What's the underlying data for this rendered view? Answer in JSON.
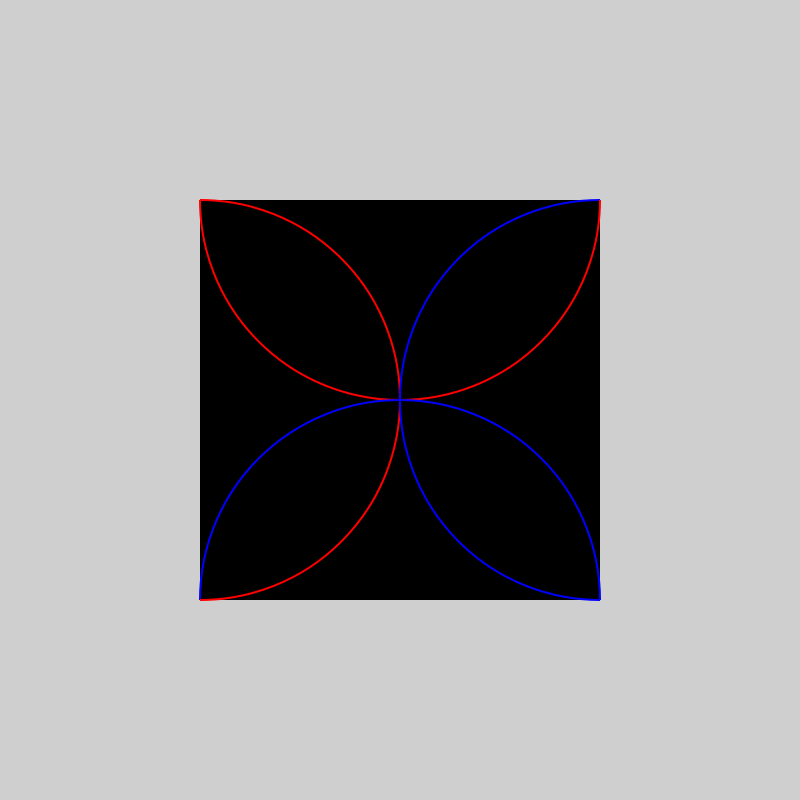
{
  "colors": {
    "page_background": "#cfcfcf",
    "square_fill": "#000000",
    "red_arcs": "#ff0000",
    "blue_arcs": "#0000ff"
  },
  "petals": [
    {
      "name": "top-left-petal",
      "color_key": "red_arcs"
    },
    {
      "name": "top-right-petal",
      "color_key": "blue_arcs"
    },
    {
      "name": "bottom-left-petal",
      "color_key": "blue_arcs"
    },
    {
      "name": "bottom-right-petal",
      "color_key": "blue_arcs"
    },
    {
      "name": "bottom-left-inner-arc",
      "color_key": "red_arcs"
    },
    {
      "name": "top-right-inner-arc",
      "color_key": "red_arcs"
    }
  ]
}
